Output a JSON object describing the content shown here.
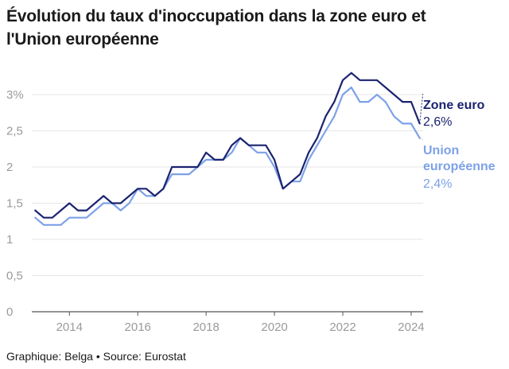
{
  "title": "Évolution du taux d'inoccupation dans la zone euro et l'Union européenne",
  "footer": "Graphique: Belga • Source: Eurostat",
  "colors": {
    "zone": "#1b2370",
    "ue": "#7da1e8",
    "grid": "#e6e6e6",
    "axis": "#555555",
    "tick": "#9a9a9a"
  },
  "chart_data": {
    "type": "line",
    "y_tick_labels": [
      "0",
      "0,5",
      "1",
      "1,5",
      "2",
      "2,5",
      "3%"
    ],
    "y_ticks": [
      0,
      0.5,
      1,
      1.5,
      2,
      2.5,
      3
    ],
    "x_tick_labels": [
      "2014",
      "2016",
      "2018",
      "2020",
      "2022",
      "2024"
    ],
    "x_ticks": [
      2014,
      2016,
      2018,
      2020,
      2022,
      2024
    ],
    "ylim": [
      0,
      3.45
    ],
    "xlim": [
      2012.9,
      2024.35
    ],
    "grid": true,
    "legend": "end-of-line labels",
    "x": [
      2013.0,
      2013.25,
      2013.5,
      2013.75,
      2014.0,
      2014.25,
      2014.5,
      2014.75,
      2015.0,
      2015.25,
      2015.5,
      2015.75,
      2016.0,
      2016.25,
      2016.5,
      2016.75,
      2017.0,
      2017.25,
      2017.5,
      2017.75,
      2018.0,
      2018.25,
      2018.5,
      2018.75,
      2019.0,
      2019.25,
      2019.5,
      2019.75,
      2020.0,
      2020.25,
      2020.5,
      2020.75,
      2021.0,
      2021.25,
      2021.5,
      2021.75,
      2022.0,
      2022.25,
      2022.5,
      2022.75,
      2023.0,
      2023.25,
      2023.5,
      2023.75,
      2024.0,
      2024.25
    ],
    "series": [
      {
        "name": "Zone euro",
        "end_label": "2,6%",
        "color": "#1b2370",
        "values": [
          1.4,
          1.3,
          1.3,
          1.4,
          1.5,
          1.4,
          1.4,
          1.5,
          1.6,
          1.5,
          1.5,
          1.6,
          1.7,
          1.7,
          1.6,
          1.7,
          2.0,
          2.0,
          2.0,
          2.0,
          2.2,
          2.1,
          2.1,
          2.3,
          2.4,
          2.3,
          2.3,
          2.3,
          2.1,
          1.7,
          1.8,
          1.9,
          2.2,
          2.4,
          2.7,
          2.9,
          3.2,
          3.3,
          3.2,
          3.2,
          3.2,
          3.1,
          3.0,
          2.9,
          2.9,
          2.6
        ]
      },
      {
        "name": "Union européenne",
        "end_label": "2,4%",
        "color": "#7da1e8",
        "values": [
          1.3,
          1.2,
          1.2,
          1.2,
          1.3,
          1.3,
          1.3,
          1.4,
          1.5,
          1.5,
          1.4,
          1.5,
          1.7,
          1.6,
          1.6,
          1.7,
          1.9,
          1.9,
          1.9,
          2.0,
          2.1,
          2.1,
          2.1,
          2.2,
          2.4,
          2.3,
          2.2,
          2.2,
          2.0,
          1.7,
          1.8,
          1.8,
          2.1,
          2.3,
          2.5,
          2.7,
          3.0,
          3.1,
          2.9,
          2.9,
          3.0,
          2.9,
          2.7,
          2.6,
          2.6,
          2.4
        ]
      }
    ]
  }
}
